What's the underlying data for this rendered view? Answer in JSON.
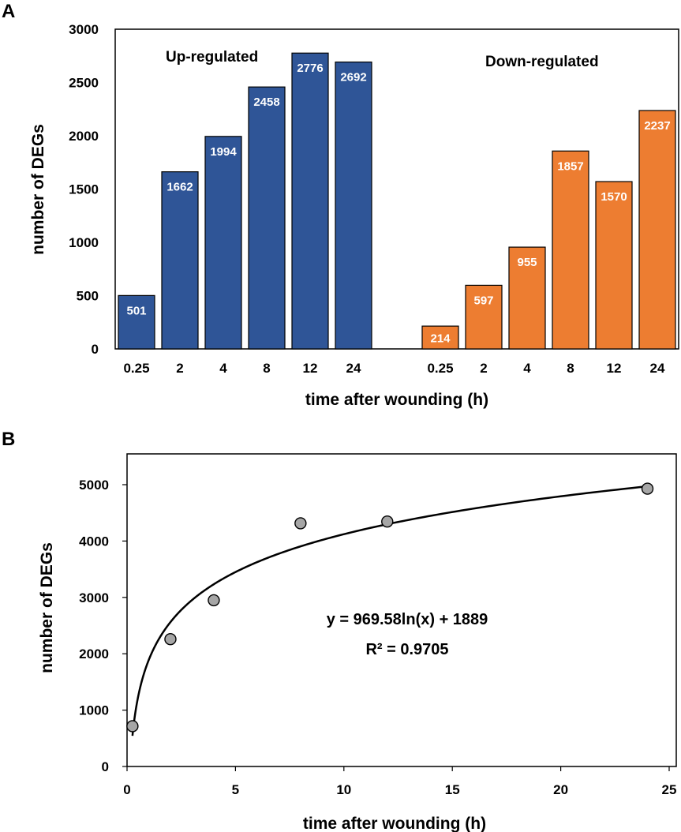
{
  "panel_labels": {
    "a": "A",
    "b": "B"
  },
  "colors": {
    "up": "#2F5597",
    "down": "#ED7D31",
    "bar_label": "#FFFFFF",
    "point": "#A6A6A6"
  },
  "chart_data": [
    {
      "type": "bar",
      "panel": "A",
      "title": "",
      "xlabel": "time after wounding (h)",
      "ylabel": "number of DEGs",
      "ylim": [
        0,
        3000
      ],
      "yticks": [
        "0",
        "500",
        "1000",
        "1500",
        "2000",
        "2500",
        "3000"
      ],
      "categories": [
        "0.25",
        "2",
        "4",
        "8",
        "12",
        "24"
      ],
      "series": [
        {
          "name": "Up-regulated",
          "values": [
            501,
            1662,
            1994,
            2458,
            2776,
            2692
          ],
          "labels": [
            "501",
            "1662",
            "1994",
            "2458",
            "2776",
            "2692"
          ]
        },
        {
          "name": "Down-regulated",
          "values": [
            214,
            597,
            955,
            1857,
            1570,
            2237
          ],
          "labels": [
            "214",
            "597",
            "955",
            "1857",
            "1570",
            "2237"
          ]
        }
      ]
    },
    {
      "type": "scatter",
      "panel": "B",
      "title": "",
      "xlabel": "time after wounding (h)",
      "ylabel": "number of DEGs",
      "xlim": [
        0,
        25
      ],
      "ylim": [
        0,
        5500
      ],
      "xticks": [
        "0",
        "5",
        "10",
        "15",
        "20",
        "25"
      ],
      "yticks": [
        "0",
        "1000",
        "2000",
        "3000",
        "4000",
        "5000"
      ],
      "x": [
        0.25,
        2,
        4,
        8,
        12,
        24
      ],
      "y": [
        715,
        2259,
        2949,
        4315,
        4346,
        4929
      ],
      "trendline": {
        "type": "logarithmic",
        "a": 969.58,
        "b": 1889
      },
      "equation": "y = 969.58ln(x) + 1889",
      "r_squared": "R² = 0.9705"
    }
  ]
}
